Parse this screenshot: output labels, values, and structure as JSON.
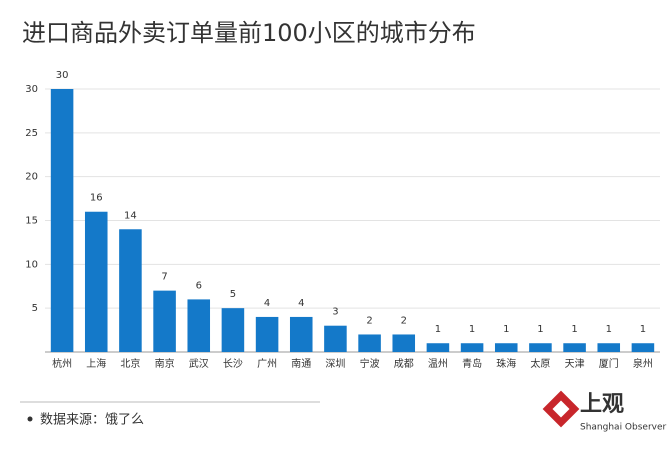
{
  "chart_data": {
    "type": "bar",
    "title": "进口商品外卖订单量前100小区的城市分布",
    "categories": [
      "杭州",
      "上海",
      "北京",
      "南京",
      "武汉",
      "长沙",
      "广州",
      "南通",
      "深圳",
      "宁波",
      "成都",
      "温州",
      "青岛",
      "珠海",
      "太原",
      "天津",
      "厦门",
      "泉州"
    ],
    "values": [
      30,
      16,
      14,
      7,
      6,
      5,
      4,
      4,
      3,
      2,
      2,
      1,
      1,
      1,
      1,
      1,
      1,
      1
    ],
    "color": "#1479c9",
    "ylim": [
      0,
      30
    ],
    "yticks": [
      5,
      10,
      15,
      20,
      25,
      30
    ],
    "grid": true
  },
  "source": "数据来源：饿了么",
  "logo": {
    "name": "上观",
    "subtitle": "Shanghai Observer"
  }
}
